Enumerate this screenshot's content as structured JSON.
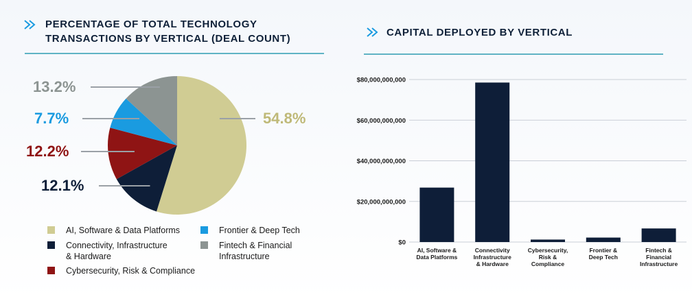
{
  "colors": {
    "ai": "#d0cc93",
    "connectivity": "#0e1e38",
    "cyber": "#8f1414",
    "frontier": "#1a9be0",
    "fintech": "#8c9492",
    "title": "#0e2038",
    "rule": "#5fb3c4",
    "bar": "#0e1e38",
    "grid": "#c9ced6"
  },
  "icons": {
    "left_title_icon": "double-chevron-right-icon",
    "right_title_icon": "double-chevron-right-icon"
  },
  "chart_data": [
    {
      "type": "pie",
      "title_lines": [
        "PERCENTAGE OF TOTAL TECHNOLOGY",
        "TRANSACTIONS BY VERTICAL (DEAL COUNT)"
      ],
      "slices": [
        {
          "key": "ai",
          "label": "54.8%",
          "value": 54.8
        },
        {
          "key": "connectivity",
          "label": "12.1%",
          "value": 12.1
        },
        {
          "key": "cyber",
          "label": "12.2%",
          "value": 12.2
        },
        {
          "key": "frontier",
          "label": "7.7%",
          "value": 7.7
        },
        {
          "key": "fintech",
          "label": "13.2%",
          "value": 13.2
        }
      ],
      "legend": [
        {
          "key": "ai",
          "lines": [
            "AI, Software & Data Platforms"
          ]
        },
        {
          "key": "frontier",
          "lines": [
            "Frontier & Deep Tech"
          ]
        },
        {
          "key": "connectivity",
          "lines": [
            "Connectivity, Infrastructure",
            "& Hardware"
          ]
        },
        {
          "key": "fintech",
          "lines": [
            "Fintech & Financial",
            "Infrastructure"
          ]
        },
        {
          "key": "cyber",
          "lines": [
            "Cybersecurity, Risk & Compliance"
          ]
        }
      ]
    },
    {
      "type": "bar",
      "title": "CAPITAL DEPLOYED BY VERTICAL",
      "ylim": [
        0,
        80000000000
      ],
      "yticks": [
        {
          "value": 0,
          "label": "$0"
        },
        {
          "value": 20000000000,
          "label": "$20,000,000,000"
        },
        {
          "value": 40000000000,
          "label": "$40,000,000,000"
        },
        {
          "value": 60000000000,
          "label": "$60,000,000,000"
        },
        {
          "value": 80000000000,
          "label": "$80,000,000,000"
        }
      ],
      "grid": true,
      "categories": [
        {
          "lines": [
            "AI, Software &",
            "Data Platforms"
          ]
        },
        {
          "lines": [
            "Connectivity",
            "Infrastructure",
            "& Hardware"
          ]
        },
        {
          "lines": [
            "Cybersecurity,",
            "Risk &",
            "Compliance"
          ]
        },
        {
          "lines": [
            "Frontier &",
            "Deep Tech"
          ]
        },
        {
          "lines": [
            "Fintech &",
            "Financial",
            "Infrastructure"
          ]
        }
      ],
      "values": [
        26800000000,
        78500000000,
        1200000000,
        2200000000,
        6700000000
      ]
    }
  ]
}
